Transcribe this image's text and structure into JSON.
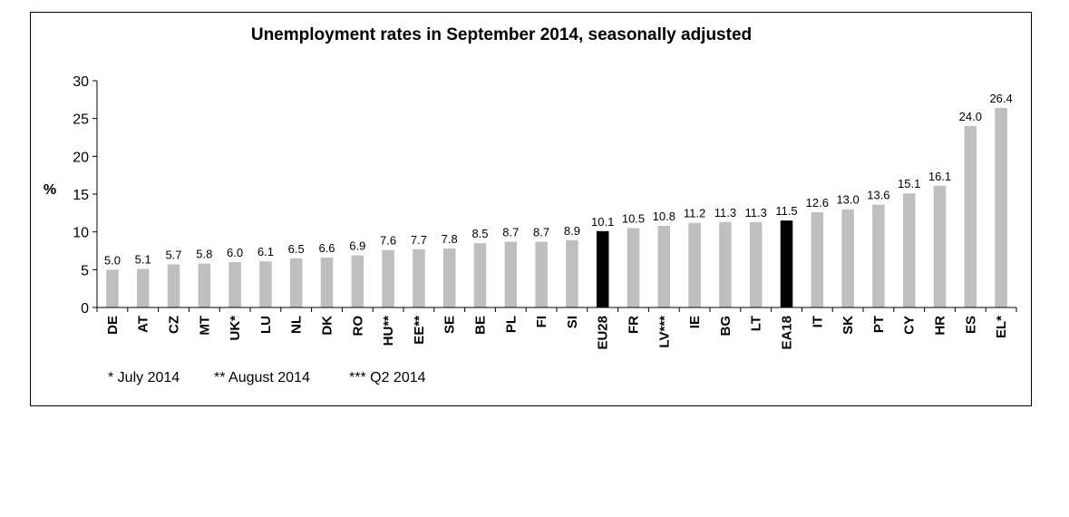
{
  "chart_data": {
    "type": "bar",
    "title": "Unemployment rates in September 2014, seasonally adjusted",
    "ylabel": "%",
    "ylim": [
      0,
      30
    ],
    "yticks": [
      0,
      5,
      10,
      15,
      20,
      25,
      30
    ],
    "categories": [
      "DE",
      "AT",
      "CZ",
      "MT",
      "UK*",
      "LU",
      "NL",
      "DK",
      "RO",
      "HU**",
      "EE**",
      "SE",
      "BE",
      "PL",
      "FI",
      "SI",
      "EU28",
      "FR",
      "LV***",
      "IE",
      "BG",
      "LT",
      "EA18",
      "IT",
      "SK",
      "PT",
      "CY",
      "HR",
      "ES",
      "EL*"
    ],
    "values": [
      5.0,
      5.1,
      5.7,
      5.8,
      6.0,
      6.1,
      6.5,
      6.6,
      6.9,
      7.6,
      7.7,
      7.8,
      8.5,
      8.7,
      8.7,
      8.9,
      10.1,
      10.5,
      10.8,
      11.2,
      11.3,
      11.3,
      11.5,
      12.6,
      13.0,
      13.6,
      15.1,
      16.1,
      24.0,
      26.4
    ],
    "value_labels": [
      "5.0",
      "5.1",
      "5.7",
      "5.8",
      "6.0",
      "6.1",
      "6.5",
      "6.6",
      "6.9",
      "7.6",
      "7.7",
      "7.8",
      "8.5",
      "8.7",
      "8.7",
      "8.9",
      "10.1",
      "10.5",
      "10.8",
      "11.2",
      "11.3",
      "11.3",
      "11.5",
      "12.6",
      "13.0",
      "13.6",
      "15.1",
      "16.1",
      "24.0",
      "26.4"
    ],
    "highlighted": [
      "EU28",
      "EA18"
    ],
    "colors": {
      "bar": "#bfbfbf",
      "highlight": "#000000"
    },
    "grid": false,
    "legend": "none"
  },
  "footnotes": [
    "* July 2014",
    "** August 2014",
    "*** Q2 2014"
  ]
}
